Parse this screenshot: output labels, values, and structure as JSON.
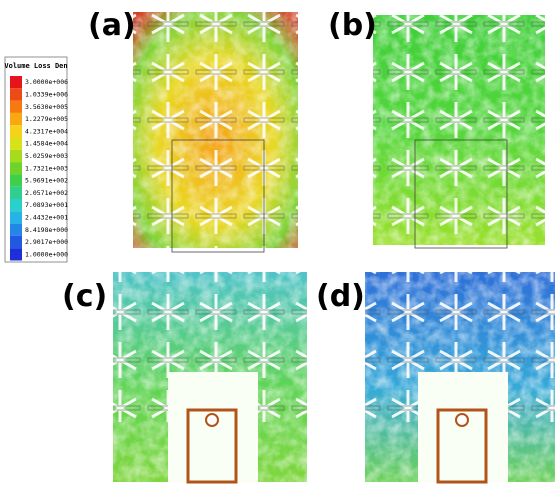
{
  "panels": [
    {
      "label": "(a)"
    },
    {
      "label": "(b)"
    },
    {
      "label": "(c)"
    },
    {
      "label": "(d)"
    }
  ],
  "legend": {
    "title": "Volume Loss Den",
    "labels": [
      "3.0000e+006",
      "1.0339e+006",
      "3.5630e+005",
      "1.2279e+005",
      "4.2317e+004",
      "1.4584e+004",
      "5.0259e+003",
      "1.7321e+003",
      "5.9691e+002",
      "2.0571e+002",
      "7.0893e+001",
      "2.4432e+001",
      "8.4198e+000",
      "2.9017e+000",
      "1.0000e+000"
    ]
  }
}
